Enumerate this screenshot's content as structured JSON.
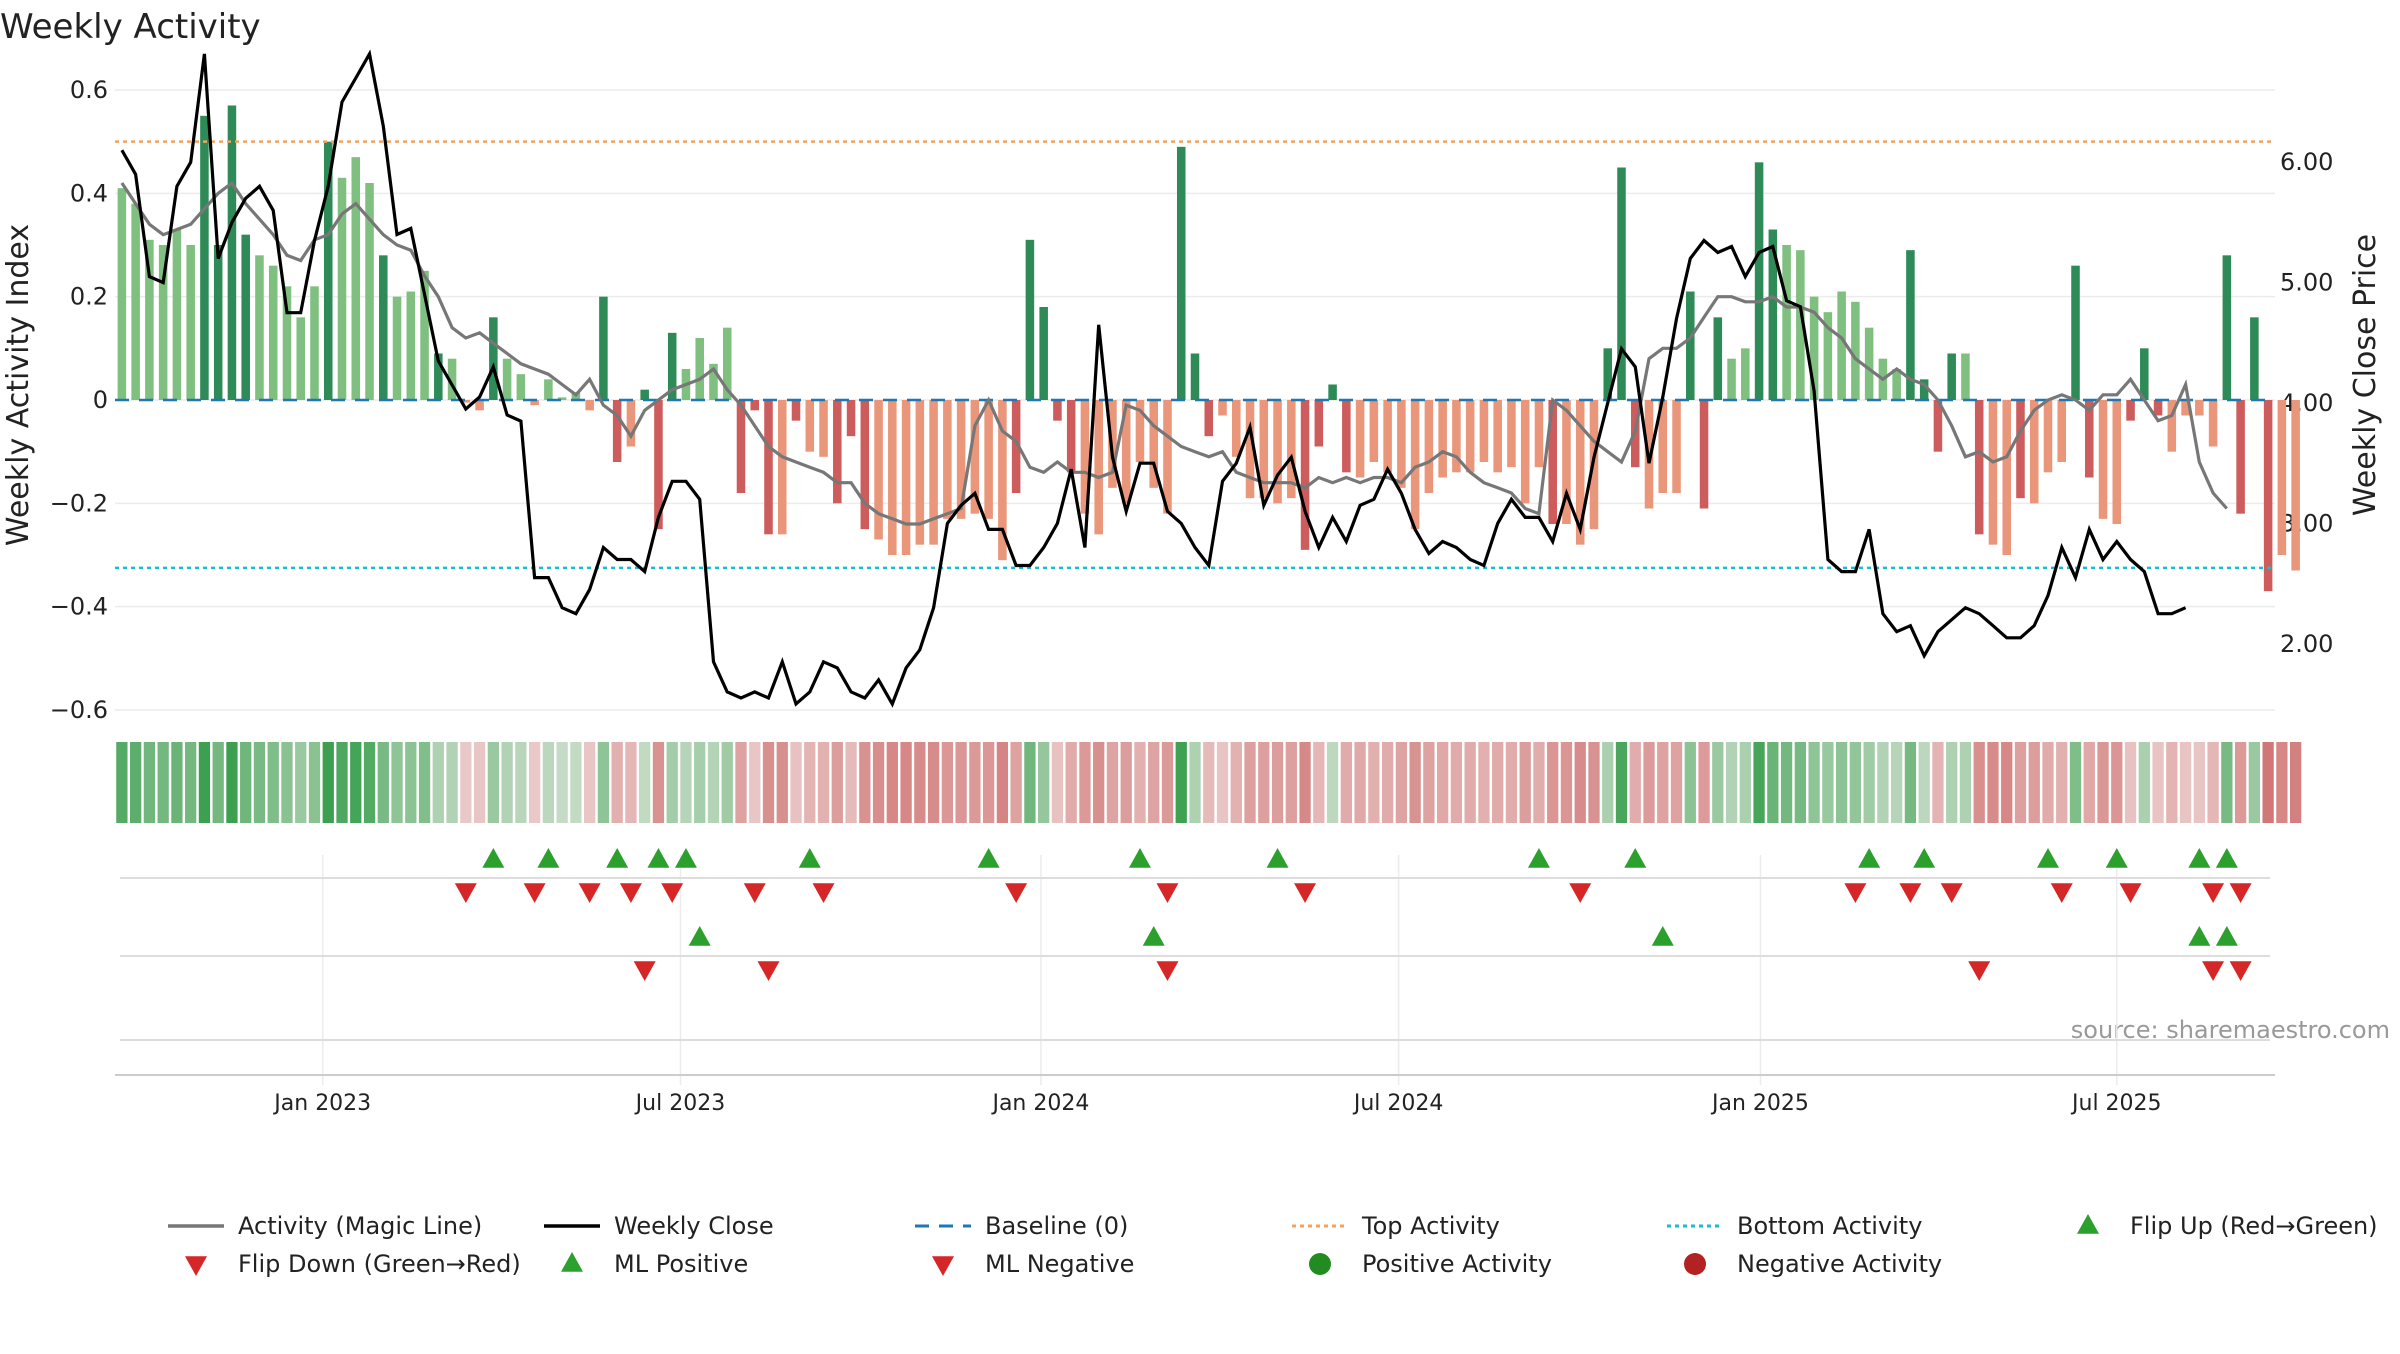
{
  "chart_data": {
    "type": "bar",
    "title": "Weekly Activity",
    "ylabel_left": "Weekly Activity Index",
    "ylabel_right": "Weekly Close Price",
    "ylim_left": [
      -0.6,
      0.6
    ],
    "ylim_right": [
      1.45,
      6.6
    ],
    "yticks_left": [
      {
        "value": 0.6,
        "label": "0.6"
      },
      {
        "value": 0.4,
        "label": "0.4"
      },
      {
        "value": 0.2,
        "label": "0.2"
      },
      {
        "value": 0,
        "label": "0"
      },
      {
        "value": -0.2,
        "label": "−0.2"
      },
      {
        "value": -0.4,
        "label": "−0.4"
      },
      {
        "value": -0.6,
        "label": "−0.6"
      }
    ],
    "yticks_right": [
      {
        "value": 6.0,
        "label": "6.00"
      },
      {
        "value": 5.0,
        "label": "5.00"
      },
      {
        "value": 4.0,
        "label": "4.00"
      },
      {
        "value": 3.0,
        "label": "3.00"
      },
      {
        "value": 2.0,
        "label": "2.00"
      }
    ],
    "x_range_weeks": [
      0,
      157
    ],
    "xticks": [
      {
        "week": 14.6,
        "label": "Jan 2023"
      },
      {
        "week": 40.6,
        "label": "Jul 2023"
      },
      {
        "week": 66.8,
        "label": "Jan 2024"
      },
      {
        "week": 92.8,
        "label": "Jul 2024"
      },
      {
        "week": 119.1,
        "label": "Jan 2025"
      },
      {
        "week": 145.0,
        "label": "Jul 2025"
      }
    ],
    "top_activity": 0.5,
    "bottom_activity": -0.325,
    "baseline": 0,
    "activity": [
      0.41,
      0.38,
      0.31,
      0.3,
      0.33,
      0.3,
      0.55,
      0.3,
      0.57,
      0.32,
      0.28,
      0.26,
      0.22,
      0.16,
      0.22,
      0.5,
      0.43,
      0.47,
      0.42,
      0.28,
      0.2,
      0.21,
      0.25,
      0.09,
      0.08,
      -0.005,
      -0.02,
      0.16,
      0.08,
      0.05,
      -0.01,
      0.04,
      0.005,
      0.015,
      -0.02,
      0.2,
      -0.12,
      -0.09,
      0.02,
      -0.25,
      0.13,
      0.06,
      0.12,
      0.07,
      0.14,
      -0.18,
      -0.02,
      -0.26,
      -0.26,
      -0.04,
      -0.1,
      -0.11,
      -0.2,
      -0.07,
      -0.25,
      -0.27,
      -0.3,
      -0.3,
      -0.28,
      -0.28,
      -0.23,
      -0.23,
      -0.22,
      -0.23,
      -0.31,
      -0.18,
      0.31,
      0.18,
      -0.04,
      -0.14,
      -0.22,
      -0.26,
      -0.17,
      -0.2,
      -0.12,
      -0.17,
      -0.22,
      0.49,
      0.09,
      -0.07,
      -0.03,
      -0.11,
      -0.19,
      -0.19,
      -0.2,
      -0.19,
      -0.29,
      -0.09,
      0.03,
      -0.14,
      -0.15,
      -0.12,
      -0.14,
      -0.17,
      -0.25,
      -0.18,
      -0.15,
      -0.14,
      -0.14,
      -0.12,
      -0.14,
      -0.13,
      -0.2,
      -0.13,
      -0.24,
      -0.24,
      -0.28,
      -0.25,
      0.1,
      0.45,
      -0.13,
      -0.21,
      -0.18,
      -0.18,
      0.21,
      -0.21,
      0.16,
      0.08,
      0.1,
      0.46,
      0.33,
      0.3,
      0.29,
      0.2,
      0.17,
      0.21,
      0.19,
      0.14,
      0.08,
      0.06,
      0.29,
      0.04,
      -0.1,
      0.09,
      0.09,
      -0.26,
      -0.28,
      -0.3,
      -0.19,
      -0.2,
      -0.14,
      -0.12,
      0.26,
      -0.15,
      -0.23,
      -0.24,
      -0.04,
      0.1,
      -0.03,
      -0.1,
      -0.03,
      -0.03,
      -0.09,
      0.28,
      -0.22,
      0.16,
      -0.37,
      -0.3,
      -0.33
    ],
    "activity_magic_line": [
      0.42,
      0.38,
      0.34,
      0.32,
      0.33,
      0.34,
      0.37,
      0.4,
      0.42,
      0.38,
      0.35,
      0.32,
      0.28,
      0.27,
      0.31,
      0.32,
      0.36,
      0.38,
      0.35,
      0.32,
      0.3,
      0.29,
      0.24,
      0.2,
      0.14,
      0.12,
      0.13,
      0.11,
      0.09,
      0.07,
      0.06,
      0.05,
      0.03,
      0.01,
      0.04,
      -0.01,
      -0.03,
      -0.07,
      -0.02,
      0.0,
      0.02,
      0.03,
      0.04,
      0.06,
      0.02,
      -0.01,
      -0.05,
      -0.09,
      -0.11,
      -0.12,
      -0.13,
      -0.14,
      -0.16,
      -0.16,
      -0.2,
      -0.22,
      -0.23,
      -0.24,
      -0.24,
      -0.23,
      -0.22,
      -0.21,
      -0.05,
      0.0,
      -0.06,
      -0.08,
      -0.13,
      -0.14,
      -0.12,
      -0.14,
      -0.14,
      -0.15,
      -0.14,
      -0.01,
      -0.02,
      -0.05,
      -0.07,
      -0.09,
      -0.1,
      -0.11,
      -0.1,
      -0.14,
      -0.15,
      -0.16,
      -0.16,
      -0.16,
      -0.17,
      -0.15,
      -0.16,
      -0.15,
      -0.16,
      -0.15,
      -0.15,
      -0.16,
      -0.13,
      -0.12,
      -0.1,
      -0.11,
      -0.14,
      -0.16,
      -0.17,
      -0.18,
      -0.21,
      -0.22,
      0.0,
      -0.02,
      -0.05,
      -0.08,
      -0.1,
      -0.12,
      -0.06,
      0.08,
      0.1,
      0.1,
      0.12,
      0.16,
      0.2,
      0.2,
      0.19,
      0.19,
      0.2,
      0.18,
      0.18,
      0.17,
      0.14,
      0.12,
      0.08,
      0.06,
      0.04,
      0.06,
      0.04,
      0.03,
      0.0,
      -0.05,
      -0.11,
      -0.1,
      -0.12,
      -0.11,
      -0.06,
      -0.02,
      0.0,
      0.01,
      0.0,
      -0.02,
      0.01,
      0.01,
      0.04,
      0.0,
      -0.04,
      -0.03,
      0.03,
      -0.12,
      -0.18,
      -0.21
    ],
    "weekly_close": [
      6.1,
      5.9,
      5.05,
      5.0,
      5.8,
      6.0,
      6.9,
      5.2,
      5.5,
      5.7,
      5.8,
      5.6,
      4.75,
      4.75,
      5.35,
      5.8,
      6.5,
      6.7,
      6.9,
      6.3,
      5.4,
      5.45,
      4.9,
      4.35,
      4.15,
      3.95,
      4.05,
      4.3,
      3.9,
      3.85,
      2.55,
      2.55,
      2.3,
      2.25,
      2.45,
      2.8,
      2.7,
      2.7,
      2.6,
      3.05,
      3.35,
      3.35,
      3.2,
      1.85,
      1.6,
      1.55,
      1.6,
      1.55,
      1.85,
      1.5,
      1.6,
      1.85,
      1.8,
      1.6,
      1.55,
      1.7,
      1.5,
      1.8,
      1.95,
      2.3,
      3.0,
      3.15,
      3.25,
      2.95,
      2.95,
      2.65,
      2.65,
      2.8,
      3.0,
      3.45,
      2.8,
      4.65,
      3.55,
      3.1,
      3.5,
      3.5,
      3.1,
      3.0,
      2.8,
      2.65,
      3.35,
      3.5,
      3.8,
      3.15,
      3.4,
      3.55,
      3.1,
      2.8,
      3.05,
      2.85,
      3.15,
      3.2,
      3.45,
      3.25,
      2.95,
      2.75,
      2.85,
      2.8,
      2.7,
      2.65,
      3.0,
      3.2,
      3.05,
      3.05,
      2.85,
      3.25,
      2.95,
      3.55,
      4.0,
      4.45,
      4.3,
      3.5,
      4.05,
      4.7,
      5.2,
      5.35,
      5.25,
      5.3,
      5.05,
      5.25,
      5.3,
      4.85,
      4.8,
      4.1,
      2.7,
      2.6,
      2.6,
      2.95,
      2.25,
      2.1,
      2.15,
      1.9,
      2.1,
      2.2,
      2.3,
      2.25,
      2.15,
      2.05,
      2.05,
      2.15,
      2.4,
      2.8,
      2.55,
      2.95,
      2.7,
      2.85,
      2.7,
      2.6,
      2.25,
      2.25,
      2.3
    ],
    "flip_up_weeks": [
      27,
      31,
      36,
      39,
      41,
      50,
      63,
      74,
      84,
      103,
      110,
      127,
      131,
      140,
      145,
      151,
      153
    ],
    "flip_down_weeks": [
      25,
      30,
      34,
      37,
      40,
      46,
      51,
      65,
      76,
      86,
      106,
      126,
      130,
      133,
      141,
      146,
      152,
      154
    ],
    "ml_positive_weeks": [
      42,
      75,
      112,
      151,
      153
    ],
    "ml_negative_weeks": [
      38,
      47,
      76,
      135,
      152,
      154
    ],
    "source": "source: sharemaestro.com",
    "legend": [
      {
        "label": "Activity (Magic Line)",
        "kind": "line",
        "color": "#777777"
      },
      {
        "label": "Weekly Close",
        "kind": "line",
        "color": "#000000"
      },
      {
        "label": "Baseline (0)",
        "kind": "dash",
        "color": "#1f77b4"
      },
      {
        "label": "Top Activity",
        "kind": "dot-line",
        "color": "#f4a261"
      },
      {
        "label": "Bottom Activity",
        "kind": "dot-line",
        "color": "#17becf"
      },
      {
        "label": "Flip Up (Red→Green)",
        "kind": "tri-up",
        "color": "#2ca02c"
      },
      {
        "label": "Flip Down (Green→Red)",
        "kind": "tri-down",
        "color": "#d62728"
      },
      {
        "label": "ML Positive",
        "kind": "tri-up",
        "color": "#2ca02c"
      },
      {
        "label": "ML Negative",
        "kind": "tri-down",
        "color": "#d62728"
      },
      {
        "label": "Positive Activity",
        "kind": "circle",
        "color": "#228b22"
      },
      {
        "label": "Negative Activity",
        "kind": "circle",
        "color": "#b22222"
      }
    ]
  }
}
